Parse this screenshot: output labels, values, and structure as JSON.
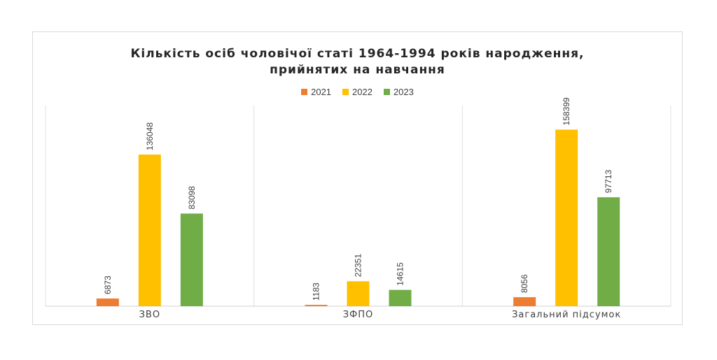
{
  "chart_data": {
    "type": "bar",
    "title_lines": [
      "Кількість осіб чоловічої статі 1964-1994 років народження,",
      "прийнятих на навчання"
    ],
    "categories": [
      "ЗВО",
      "ЗФПО",
      "Загальний підсумок"
    ],
    "series": [
      {
        "name": "2021",
        "color": "#ED7D31",
        "values": [
          6873,
          1183,
          8056
        ]
      },
      {
        "name": "2022",
        "color": "#FFC000",
        "values": [
          136048,
          22351,
          158399
        ]
      },
      {
        "name": "2023",
        "color": "#70AD47",
        "values": [
          83098,
          14615,
          97713
        ]
      }
    ],
    "ylim": [
      0,
      180000
    ],
    "data_labels": true,
    "data_label_rotation": "vertical",
    "legend_position": "top",
    "grid": "vertical-category-separators",
    "xlabel": "",
    "ylabel": ""
  }
}
